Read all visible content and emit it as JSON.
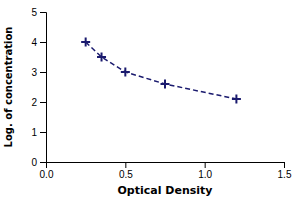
{
  "chart_data": {
    "type": "line",
    "xlabel": "Optical Density",
    "ylabel": "Log. of concentration",
    "x": [
      0.25,
      0.35,
      0.5,
      0.75,
      1.2
    ],
    "values": [
      4.0,
      3.5,
      3.0,
      2.6,
      2.1
    ],
    "color": "#1a1a6e",
    "marker": "+",
    "line_style": "dashed",
    "xlim": [
      0,
      1.5
    ],
    "ylim": [
      0,
      5
    ],
    "xticks": [
      {
        "value": 0,
        "label": "0.0"
      },
      0.5,
      {
        "value": 1.0,
        "label": "1.0"
      },
      1.5
    ],
    "yticks": [
      0,
      1,
      2,
      3,
      4,
      5
    ],
    "grid": false
  }
}
